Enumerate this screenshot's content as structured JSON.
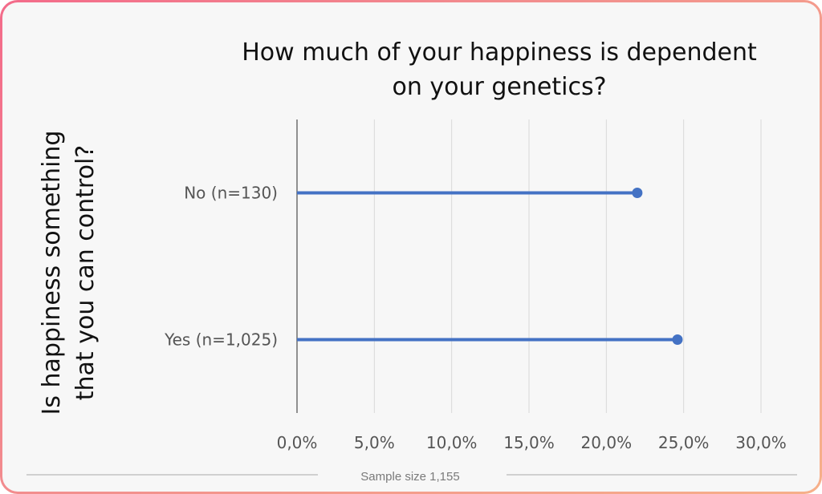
{
  "footer": {
    "sample_size": "Sample size 1,155"
  },
  "chart_data": {
    "type": "lollipop",
    "orientation": "horizontal",
    "title": "How much of your happiness is dependent on your genetics?",
    "title_lines": [
      "How much of your happiness is dependent",
      "on your genetics?"
    ],
    "ylabel": "Is happiness something that you can control?",
    "ylabel_lines": [
      "Is happiness something",
      "that you can control?"
    ],
    "xlabel": "",
    "xlim": [
      0,
      30
    ],
    "x_ticks": [
      0,
      5,
      10,
      15,
      20,
      25,
      30
    ],
    "x_tick_labels": [
      "0,0%",
      "5,0%",
      "10,0%",
      "15,0%",
      "20,0%",
      "25,0%",
      "30,0%"
    ],
    "grid": true,
    "legend": "none",
    "categories": [
      "No (n=130)",
      "Yes (n=1,025)"
    ],
    "values": [
      22.0,
      24.6
    ],
    "colors": {
      "series": "#4472c4",
      "grid": "#d9d9d9",
      "axis": "#595959"
    }
  }
}
